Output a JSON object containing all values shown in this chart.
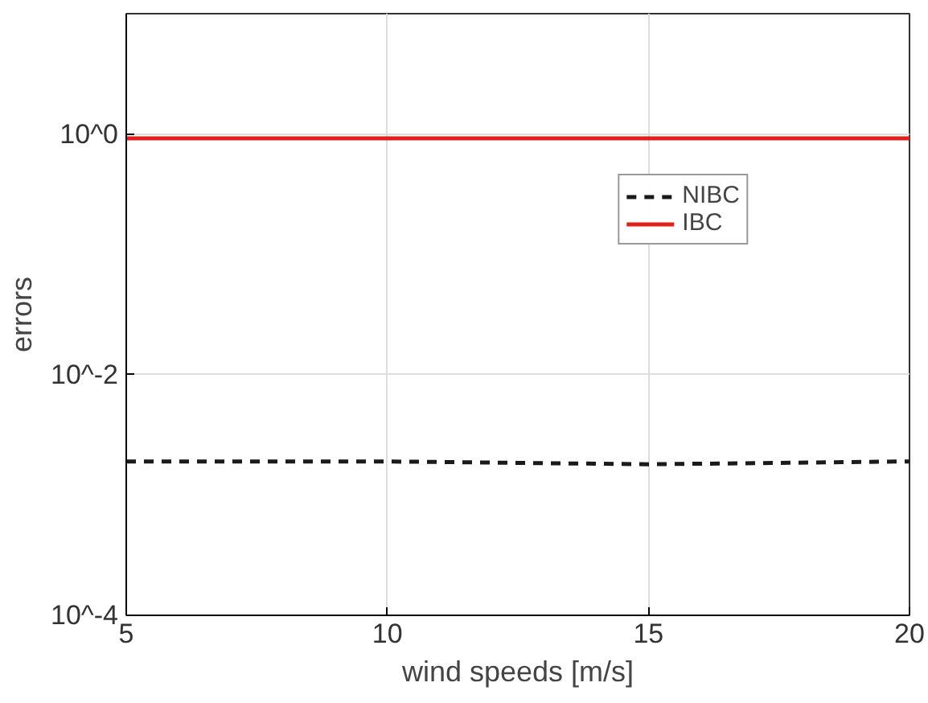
{
  "chart_data": {
    "type": "line",
    "xlabel": "wind speeds [m/s]",
    "ylabel": "errors",
    "x": [
      5,
      10,
      15,
      20
    ],
    "series": [
      {
        "name": "NIBC",
        "color": "#1a1a1a",
        "line_style": "dashed",
        "values": [
          0.0019,
          0.0019,
          0.0018,
          0.0019
        ]
      },
      {
        "name": "IBC",
        "color": "#e0201b",
        "line_style": "solid",
        "values": [
          0.92,
          0.92,
          0.92,
          0.92
        ]
      }
    ],
    "xlim": [
      5,
      20
    ],
    "xticks": [
      5,
      10,
      15,
      20
    ],
    "ylim": [
      0.0001,
      10
    ],
    "yticks": [
      {
        "value": 0.0001,
        "label": "10^-4"
      },
      {
        "value": 0.01,
        "label": "10^-2"
      },
      {
        "value": 1,
        "label": "10^0"
      }
    ],
    "log": "y",
    "grid": true,
    "legend": "top right",
    "marker": "none"
  }
}
